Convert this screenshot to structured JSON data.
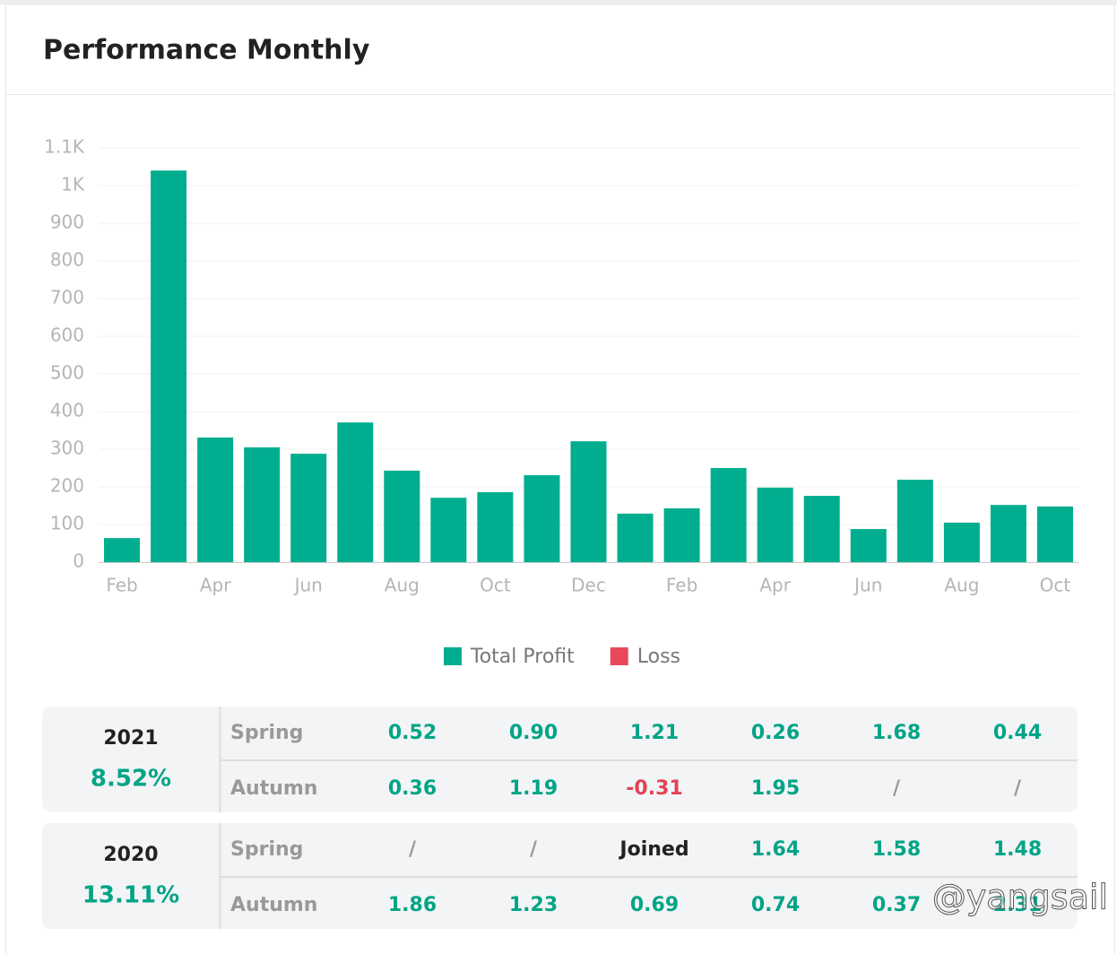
{
  "header": {
    "title": "Performance Monthly"
  },
  "chart_data": {
    "type": "bar",
    "categories": [
      "Feb",
      null,
      "Apr",
      null,
      "Jun",
      null,
      "Aug",
      null,
      "Oct",
      null,
      "Dec",
      null,
      "Feb",
      null,
      "Apr",
      null,
      "Jun",
      null,
      "Aug",
      null,
      "Oct"
    ],
    "series": [
      {
        "name": "Total Profit",
        "color": "#00ae8f",
        "values": [
          64,
          1040,
          331,
          305,
          288,
          371,
          243,
          171,
          186,
          231,
          321,
          129,
          143,
          250,
          198,
          176,
          88,
          219,
          105,
          152,
          148
        ]
      },
      {
        "name": "Loss",
        "color": "#e8485b",
        "values": [
          null,
          null,
          null,
          null,
          null,
          null,
          null,
          null,
          null,
          null,
          null,
          null,
          null,
          null,
          null,
          null,
          null,
          null,
          null,
          null,
          null
        ]
      }
    ],
    "ylim": [
      0,
      1100
    ],
    "yticks": [
      0,
      100,
      200,
      300,
      400,
      500,
      600,
      700,
      800,
      900,
      {
        "value": 1000,
        "label": "1K"
      },
      {
        "value": 1100,
        "label": "1.1K"
      }
    ],
    "grid": true,
    "legend": "bottom"
  },
  "tables": [
    {
      "year": "2021",
      "return": "8.52%",
      "rows": [
        {
          "label": "Spring",
          "cells": [
            "0.52",
            "0.90",
            "1.21",
            "0.26",
            "1.68",
            "0.44"
          ]
        },
        {
          "label": "Autumn",
          "cells": [
            "0.36",
            "1.19",
            "-0.31",
            "1.95",
            "/",
            "/"
          ]
        }
      ]
    },
    {
      "year": "2020",
      "return": "13.11%",
      "rows": [
        {
          "label": "Spring",
          "cells": [
            "/",
            "/",
            "Joined",
            "1.64",
            "1.58",
            "1.48"
          ]
        },
        {
          "label": "Autumn",
          "cells": [
            "1.86",
            "1.23",
            "0.69",
            "0.74",
            "0.37",
            "2.31"
          ]
        }
      ]
    }
  ],
  "watermark": "@yangsail"
}
